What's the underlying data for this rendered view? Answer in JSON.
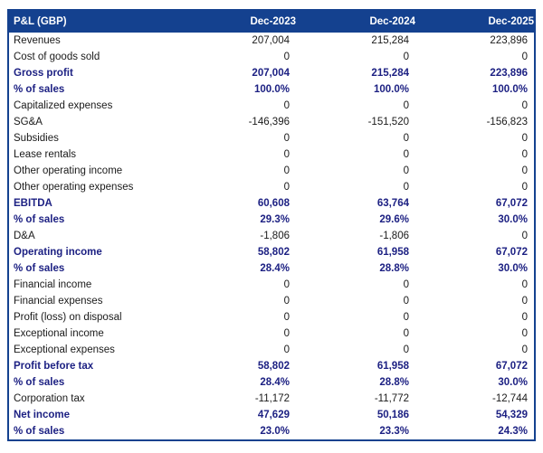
{
  "colors": {
    "header_bg": "#14418f",
    "border": "#14418f",
    "bold_text": "#1d2183",
    "body_text": "#1a1a1a",
    "header_text": "#ffffff",
    "page_bg": "#ffffff"
  },
  "chart_data": {
    "type": "table",
    "title": "P&L (GBP)",
    "columns": [
      "Dec-2023",
      "Dec-2024",
      "Dec-2025"
    ],
    "rows": [
      {
        "label": "Revenues",
        "values": [
          "207,004",
          "215,284",
          "223,896"
        ],
        "bold": false
      },
      {
        "label": "Cost of goods sold",
        "values": [
          "0",
          "0",
          "0"
        ],
        "bold": false
      },
      {
        "label": "Gross profit",
        "values": [
          "207,004",
          "215,284",
          "223,896"
        ],
        "bold": true
      },
      {
        "label": "% of sales",
        "values": [
          "100.0%",
          "100.0%",
          "100.0%"
        ],
        "bold": true
      },
      {
        "label": "Capitalized expenses",
        "values": [
          "0",
          "0",
          "0"
        ],
        "bold": false
      },
      {
        "label": "SG&A",
        "values": [
          "-146,396",
          "-151,520",
          "-156,823"
        ],
        "bold": false
      },
      {
        "label": "Subsidies",
        "values": [
          "0",
          "0",
          "0"
        ],
        "bold": false
      },
      {
        "label": "Lease rentals",
        "values": [
          "0",
          "0",
          "0"
        ],
        "bold": false
      },
      {
        "label": "Other operating income",
        "values": [
          "0",
          "0",
          "0"
        ],
        "bold": false
      },
      {
        "label": "Other operating expenses",
        "values": [
          "0",
          "0",
          "0"
        ],
        "bold": false
      },
      {
        "label": "EBITDA",
        "values": [
          "60,608",
          "63,764",
          "67,072"
        ],
        "bold": true
      },
      {
        "label": "% of sales",
        "values": [
          "29.3%",
          "29.6%",
          "30.0%"
        ],
        "bold": true
      },
      {
        "label": "D&A",
        "values": [
          "-1,806",
          "-1,806",
          "0"
        ],
        "bold": false
      },
      {
        "label": "Operating income",
        "values": [
          "58,802",
          "61,958",
          "67,072"
        ],
        "bold": true
      },
      {
        "label": "% of sales",
        "values": [
          "28.4%",
          "28.8%",
          "30.0%"
        ],
        "bold": true
      },
      {
        "label": "Financial income",
        "values": [
          "0",
          "0",
          "0"
        ],
        "bold": false
      },
      {
        "label": "Financial expenses",
        "values": [
          "0",
          "0",
          "0"
        ],
        "bold": false
      },
      {
        "label": "Profit (loss) on disposal",
        "values": [
          "0",
          "0",
          "0"
        ],
        "bold": false
      },
      {
        "label": "Exceptional income",
        "values": [
          "0",
          "0",
          "0"
        ],
        "bold": false
      },
      {
        "label": "Exceptional expenses",
        "values": [
          "0",
          "0",
          "0"
        ],
        "bold": false
      },
      {
        "label": "Profit before tax",
        "values": [
          "58,802",
          "61,958",
          "67,072"
        ],
        "bold": true
      },
      {
        "label": "% of sales",
        "values": [
          "28.4%",
          "28.8%",
          "30.0%"
        ],
        "bold": true
      },
      {
        "label": "Corporation tax",
        "values": [
          "-11,172",
          "-11,772",
          "-12,744"
        ],
        "bold": false
      },
      {
        "label": "Net income",
        "values": [
          "47,629",
          "50,186",
          "54,329"
        ],
        "bold": true
      },
      {
        "label": "% of sales",
        "values": [
          "23.0%",
          "23.3%",
          "24.3%"
        ],
        "bold": true
      }
    ]
  }
}
